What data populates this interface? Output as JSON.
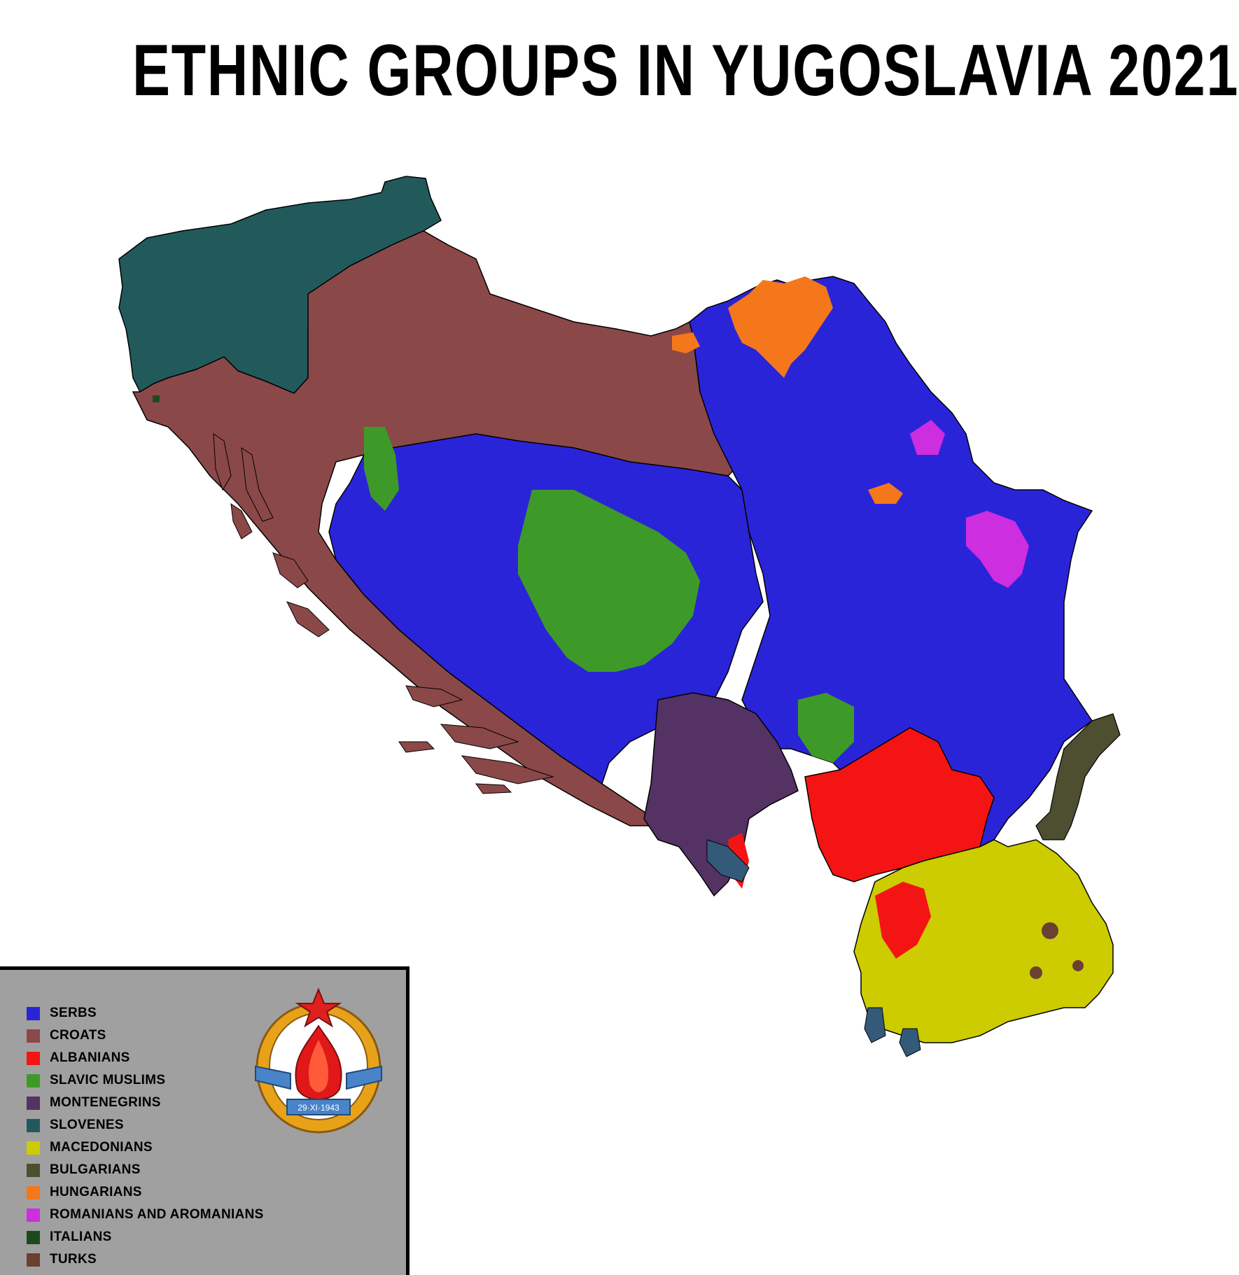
{
  "title": "ETHNIC GROUPS IN YUGOSLAVIA 2021",
  "colors": {
    "serbs": "#2a24d8",
    "croats": "#8b4848",
    "albanians": "#f51414",
    "slavic_muslims": "#3e9a28",
    "montenegrins": "#543264",
    "slovenes": "#225a5c",
    "macedonians": "#cccc00",
    "bulgarians": "#4e4e30",
    "hungarians": "#f4771c",
    "romanians": "#cc2ee0",
    "italians": "#1d4a1d",
    "turks": "#6a4030"
  },
  "legend": {
    "items": [
      {
        "label": "SERBS",
        "color": "#2a24d8"
      },
      {
        "label": "CROATS",
        "color": "#8b4848"
      },
      {
        "label": "ALBANIANS",
        "color": "#f51414"
      },
      {
        "label": "SLAVIC MUSLIMS",
        "color": "#3e9a28"
      },
      {
        "label": "MONTENEGRINS",
        "color": "#543264"
      },
      {
        "label": "SLOVENES",
        "color": "#225a5c"
      },
      {
        "label": "MACEDONIANS",
        "color": "#cccc00"
      },
      {
        "label": "BULGARIANS",
        "color": "#4e4e30"
      },
      {
        "label": "HUNGARIANS",
        "color": "#f4771c"
      },
      {
        "label": "ROMANIANS AND AROMANIANS",
        "color": "#cc2ee0"
      },
      {
        "label": "ITALIANS",
        "color": "#1d4a1d"
      },
      {
        "label": "TURKS",
        "color": "#6a4030"
      }
    ]
  },
  "emblem": {
    "date_text": "29·XI·1943",
    "icon": "coat-of-arms-icon"
  }
}
